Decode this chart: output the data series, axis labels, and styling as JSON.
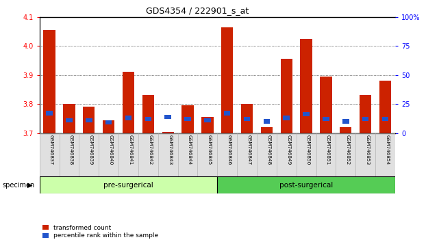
{
  "title": "GDS4354 / 222901_s_at",
  "samples": [
    "GSM746837",
    "GSM746838",
    "GSM746839",
    "GSM746840",
    "GSM746841",
    "GSM746842",
    "GSM746843",
    "GSM746844",
    "GSM746845",
    "GSM746846",
    "GSM746847",
    "GSM746848",
    "GSM746849",
    "GSM746850",
    "GSM746851",
    "GSM746852",
    "GSM746853",
    "GSM746854"
  ],
  "red_values": [
    4.055,
    3.8,
    3.79,
    3.745,
    3.91,
    3.83,
    3.705,
    3.795,
    3.755,
    4.065,
    3.8,
    3.72,
    3.955,
    4.025,
    3.895,
    3.72,
    3.83,
    3.88
  ],
  "blue_percentiles": [
    16,
    10,
    10,
    8,
    12,
    11,
    13,
    11,
    10,
    16,
    11,
    9,
    12,
    15,
    11,
    9,
    11,
    11
  ],
  "ylim_left": [
    3.7,
    4.1
  ],
  "ylim_right": [
    0,
    100
  ],
  "yticks_left": [
    3.7,
    3.8,
    3.9,
    4.0,
    4.1
  ],
  "yticks_right": [
    0,
    25,
    50,
    75,
    100
  ],
  "ytick_labels_right": [
    "0",
    "25",
    "50",
    "75",
    "100%"
  ],
  "bar_baseline": 3.7,
  "bar_width": 0.6,
  "red_color": "#cc2200",
  "blue_color": "#2255cc",
  "pre_surgical_count": 9,
  "pre_label": "pre-surgerical",
  "post_label": "post-surgerical",
  "specimen_label": "specimen",
  "legend_red": "transformed count",
  "legend_blue": "percentile rank within the sample",
  "bg_pre": "#ccffaa",
  "bg_post": "#55cc55",
  "bg_col": "#cccccc"
}
